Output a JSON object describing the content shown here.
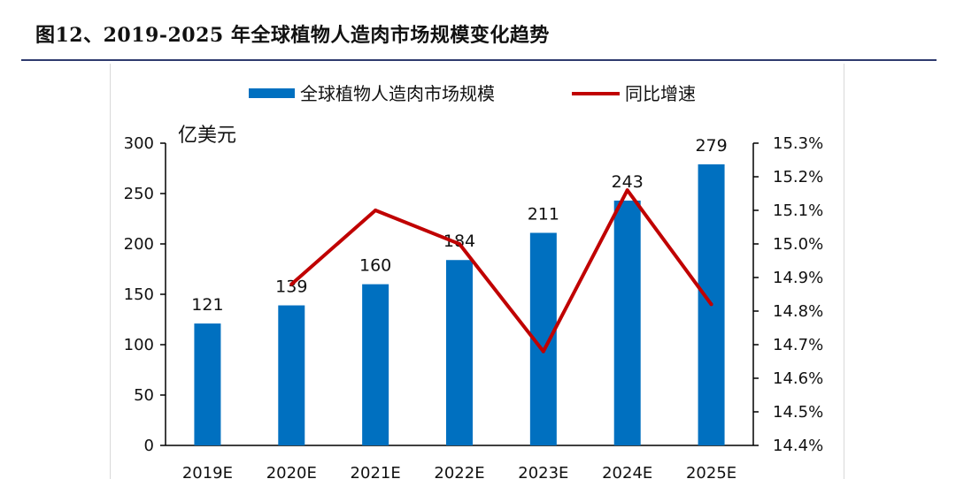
{
  "figure": {
    "title": "图12、2019-2025 年全球植物人造肉市场规模变化趋势"
  },
  "chart_data": {
    "type": "bar",
    "title": "图12、2019-2025 年全球植物人造肉市场规模变化趋势",
    "categories": [
      "2019E",
      "2020E",
      "2021E",
      "2022E",
      "2023E",
      "2024E",
      "2025E"
    ],
    "series": [
      {
        "name": "全球植物人造肉市场规模",
        "type": "bar",
        "axis": "left",
        "color": "#0070c0",
        "values": [
          121,
          139,
          160,
          184,
          211,
          243,
          279
        ]
      },
      {
        "name": "同比增速",
        "type": "line",
        "axis": "right",
        "color": "#c00000",
        "values": [
          null,
          14.88,
          15.1,
          15.0,
          14.68,
          15.16,
          14.82
        ]
      }
    ],
    "left_axis": {
      "unit": "亿美元",
      "min": 0,
      "max": 300,
      "step": 50,
      "ticks": [
        "0",
        "50",
        "100",
        "150",
        "200",
        "250",
        "300"
      ]
    },
    "right_axis": {
      "min": 14.4,
      "max": 15.3,
      "step": 0.1,
      "ticks": [
        "14.4%",
        "14.5%",
        "14.6%",
        "14.7%",
        "14.8%",
        "14.9%",
        "15.0%",
        "15.1%",
        "15.2%",
        "15.3%"
      ]
    },
    "data_labels": [
      "121",
      "139",
      "160",
      "184",
      "211",
      "243",
      "279"
    ],
    "legend": {
      "position": "top-center"
    }
  }
}
